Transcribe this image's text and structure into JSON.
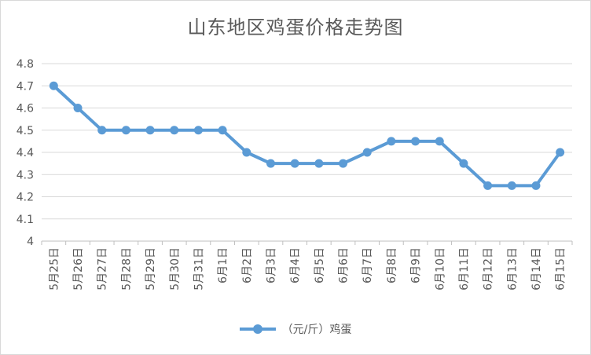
{
  "chart_data": {
    "type": "line",
    "title": "山东地区鸡蛋价格走势图",
    "categories": [
      "5月25日",
      "5月26日",
      "5月27日",
      "5月28日",
      "5月29日",
      "5月30日",
      "5月31日",
      "6月1日",
      "6月2日",
      "6月3日",
      "6月4日",
      "6月5日",
      "6月6日",
      "6月7日",
      "6月8日",
      "6月9日",
      "6月10日",
      "6月11日",
      "6月12日",
      "6月13日",
      "6月14日",
      "6月15日"
    ],
    "series": [
      {
        "name": "（元/斤）鸡蛋",
        "color": "#5b9bd5",
        "values": [
          4.7,
          4.6,
          4.5,
          4.5,
          4.5,
          4.5,
          4.5,
          4.5,
          4.4,
          4.35,
          4.35,
          4.35,
          4.35,
          4.4,
          4.45,
          4.45,
          4.45,
          4.35,
          4.25,
          4.25,
          4.25,
          4.4
        ]
      }
    ],
    "yticks": [
      "4",
      "4.1",
      "4.2",
      "4.3",
      "4.4",
      "4.5",
      "4.6",
      "4.7",
      "4.8"
    ],
    "ylim": [
      4,
      4.8
    ],
    "xlabel": "",
    "ylabel": "",
    "grid": true,
    "legend": "bottom"
  }
}
